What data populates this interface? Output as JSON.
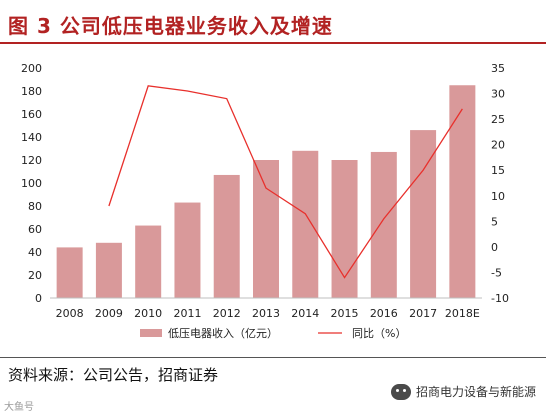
{
  "figure": {
    "title": "图 3 公司低压电器业务收入及增速",
    "source": "资料来源：公司公告，招商证券",
    "brand": "招商电力设备与新能源",
    "watermark": "大鱼号"
  },
  "chart_data": {
    "type": "bar",
    "categories": [
      "2008",
      "2009",
      "2010",
      "2011",
      "2012",
      "2013",
      "2014",
      "2015",
      "2016",
      "2017",
      "2018E"
    ],
    "series": [
      {
        "name": "低压电器收入（亿元）",
        "type": "bar",
        "axis": "left",
        "color": "#d9999a",
        "values": [
          44,
          48,
          63,
          83,
          107,
          120,
          128,
          120,
          127,
          146,
          185
        ]
      },
      {
        "name": "同比（%）",
        "type": "line",
        "axis": "right",
        "color": "#e8302c",
        "values": [
          null,
          8,
          31.5,
          30.5,
          29,
          11.5,
          6.5,
          -6,
          5.5,
          15,
          27
        ]
      }
    ],
    "y_left": {
      "min": 0,
      "max": 200,
      "ticks": [
        0,
        20,
        40,
        60,
        80,
        100,
        120,
        140,
        160,
        180,
        200
      ]
    },
    "y_right": {
      "min": -10,
      "max": 35,
      "ticks": [
        -10,
        -5,
        0,
        5,
        10,
        15,
        20,
        25,
        30,
        35
      ]
    },
    "grid": false,
    "legend_position": "bottom"
  }
}
